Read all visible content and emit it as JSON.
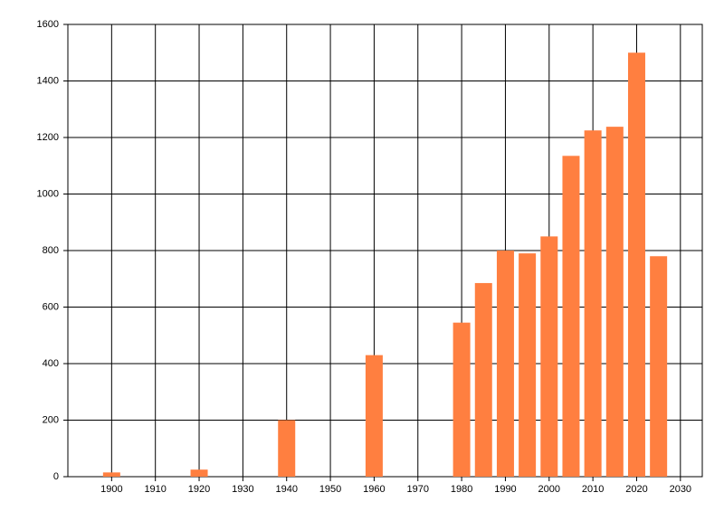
{
  "chart_data": {
    "type": "bar",
    "x": [
      1900,
      1920,
      1940,
      1960,
      1980,
      1985,
      1990,
      1995,
      2000,
      2005,
      2010,
      2015,
      2020,
      2025
    ],
    "values": [
      15,
      25,
      200,
      430,
      545,
      685,
      800,
      790,
      850,
      1135,
      1225,
      1238,
      1500,
      780
    ],
    "color": "#ff7f40",
    "xlim": [
      1890,
      2035
    ],
    "xticks": [
      1900,
      1910,
      1920,
      1930,
      1940,
      1950,
      1960,
      1970,
      1980,
      1990,
      2000,
      2010,
      2020,
      2030
    ],
    "ylim": [
      0,
      1600
    ],
    "yticks": [
      0,
      200,
      400,
      600,
      800,
      1000,
      1200,
      1400,
      1600
    ],
    "grid": true
  }
}
